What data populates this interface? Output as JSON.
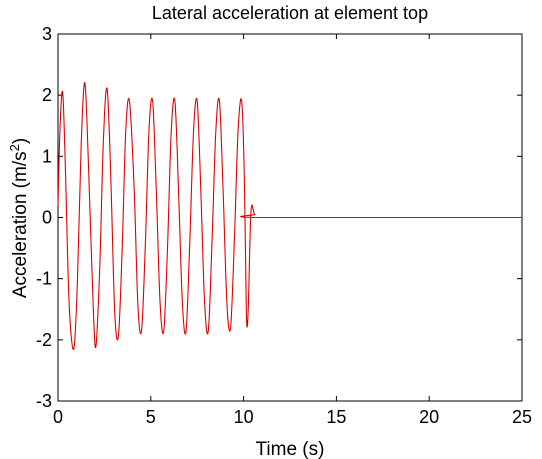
{
  "chart_data": {
    "type": "line",
    "title": "Lateral acceleration at element top",
    "xlabel": "Time (s)",
    "ylabel_main": "Acceleration (m/s",
    "ylabel_sup": "2",
    "ylabel_close": ")",
    "xlim": [
      0,
      25
    ],
    "ylim": [
      -3,
      3
    ],
    "xticks": [
      0,
      5,
      10,
      15,
      20,
      25
    ],
    "yticks": [
      -3,
      -2,
      -1,
      0,
      1,
      2,
      3
    ],
    "xtick_labels": [
      "0",
      "5",
      "10",
      "15",
      "20",
      "25"
    ],
    "ytick_labels": [
      "-3",
      "-2",
      "-1",
      "0",
      "1",
      "2",
      "3"
    ],
    "grid": false,
    "line_color": "#e00000",
    "series": [
      {
        "x": [
          0.0,
          0.1,
          0.25,
          0.4,
          0.6,
          0.85,
          1.05,
          1.25,
          1.45,
          1.65,
          1.9,
          2.05,
          2.25,
          2.45,
          2.65,
          2.85,
          3.05,
          3.25,
          3.45,
          3.65,
          3.85,
          4.1,
          4.3,
          4.5,
          4.7,
          4.9,
          5.1,
          5.3,
          5.5,
          5.7,
          5.9,
          6.1,
          6.3,
          6.5,
          6.7,
          6.9,
          7.1,
          7.3,
          7.5,
          7.7,
          7.9,
          8.1,
          8.3,
          8.5,
          8.7,
          8.9,
          9.1,
          9.3,
          9.5,
          9.7,
          9.9,
          10.05,
          10.15,
          10.25,
          10.4,
          10.6,
          11.0,
          25.0
        ],
        "y": [
          0.2,
          1.4,
          2.05,
          0.8,
          -1.4,
          -2.15,
          -1.0,
          1.2,
          2.2,
          0.8,
          -1.5,
          -2.1,
          -0.8,
          1.3,
          2.1,
          0.6,
          -1.5,
          -1.95,
          -0.6,
          1.4,
          1.9,
          0.5,
          -1.4,
          -1.85,
          -0.5,
          1.4,
          1.9,
          0.4,
          -1.4,
          -1.85,
          -0.5,
          1.4,
          1.9,
          0.4,
          -1.4,
          -1.85,
          -0.4,
          1.4,
          1.9,
          0.4,
          -1.4,
          -1.85,
          -0.4,
          1.4,
          1.9,
          0.4,
          -1.4,
          -1.8,
          -0.4,
          1.4,
          1.9,
          0.5,
          -1.6,
          -1.5,
          0.1,
          0.05,
          0.0,
          0.0
        ]
      }
    ]
  }
}
